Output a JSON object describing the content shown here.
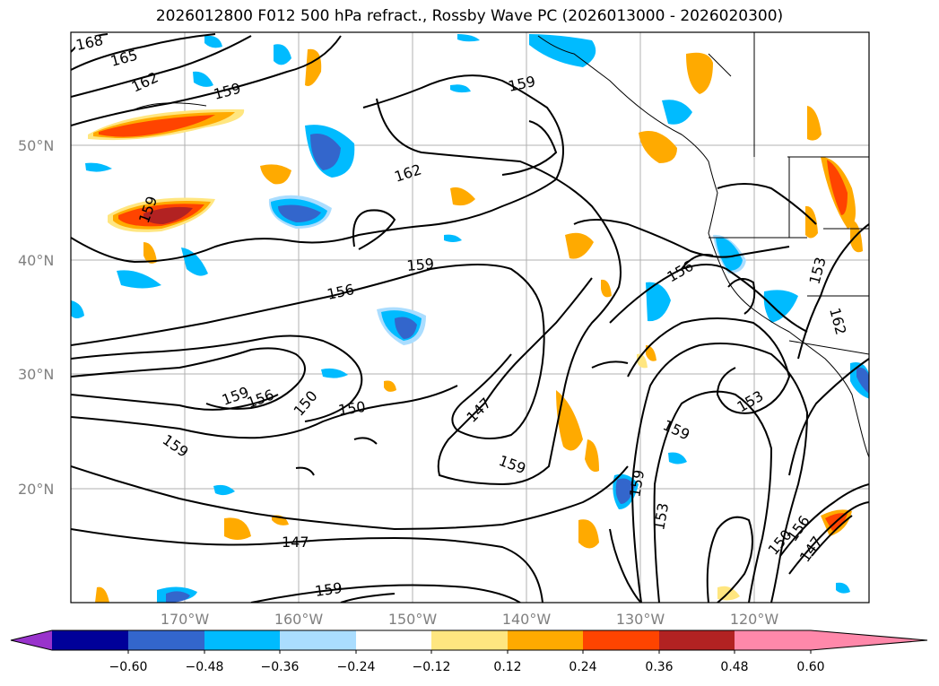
{
  "title": "2026012800 F012 500 hPa refract., Rossby Wave PC (2026013000 - 2026020300)",
  "lat_labels": [
    "50°N",
    "40°N",
    "30°N",
    "20°N"
  ],
  "lon_labels": [
    "170°W",
    "160°W",
    "150°W",
    "140°W",
    "130°W",
    "120°W"
  ],
  "contour_labels": [
    "168",
    "165",
    "162",
    "159",
    "159",
    "162",
    "159",
    "159",
    "156",
    "156",
    "153",
    "162",
    "159",
    "156",
    "150",
    "150",
    "147",
    "159",
    "159",
    "159",
    "153",
    "159",
    "153",
    "150",
    "156",
    "147",
    "147",
    "159"
  ],
  "colorbar": {
    "ticks": [
      "−0.60",
      "−0.48",
      "−0.36",
      "−0.24",
      "−0.12",
      "0.12",
      "0.24",
      "0.36",
      "0.48",
      "0.60"
    ],
    "colors": [
      "#9933cc",
      "#000099",
      "#3366cc",
      "#00bbff",
      "#aaddff",
      "#ffffff",
      "#ffe680",
      "#ffaa00",
      "#ff4400",
      "#b22222",
      "#ff88aa"
    ]
  }
}
